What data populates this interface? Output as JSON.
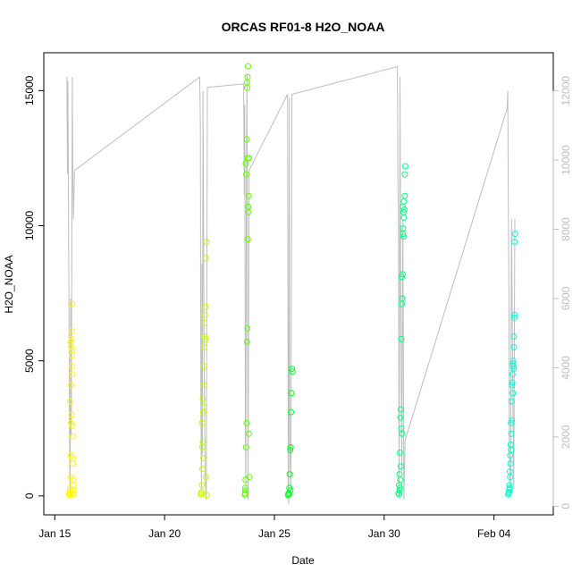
{
  "chart_data": {
    "type": "scatter",
    "title": "ORCAS RF01-8 H2O_NOAA",
    "xlabel": "Date",
    "ylabel": "H2O_NOAA",
    "x_ticks": [
      "Jan 15",
      "Jan 20",
      "Jan 25",
      "Jan 30",
      "Feb 04"
    ],
    "x_tick_values": [
      15,
      20,
      25,
      30,
      35
    ],
    "y_ticks": [
      0,
      5000,
      10000,
      15000
    ],
    "y_right_ticks": [
      0,
      2000,
      4000,
      6000,
      8000,
      10000,
      12000
    ],
    "xlim": [
      14.5,
      37.7
    ],
    "ylim": [
      -700,
      16400
    ],
    "y_right_lim": [
      -250,
      13100
    ],
    "grid": false,
    "right_axis_color": "#bebebe",
    "series": [
      {
        "color": "#FFFF00",
        "x": [
          15.65,
          15.67,
          15.69,
          15.7,
          15.71,
          15.72,
          15.73,
          15.74,
          15.75,
          15.76,
          15.77,
          15.78,
          15.79,
          15.8,
          15.81,
          15.82,
          15.83,
          15.84,
          15.85,
          15.86,
          15.87,
          15.7,
          15.72,
          15.74,
          15.78,
          15.8,
          15.82,
          15.76,
          15.68,
          15.84
        ],
        "y": [
          100,
          50,
          150,
          300,
          80,
          700,
          1500,
          2700,
          5500,
          5800,
          4800,
          6100,
          7100,
          5400,
          4500,
          2200,
          1200,
          400,
          200,
          600,
          100,
          3500,
          5700,
          4100,
          5200,
          2600,
          1400,
          3000,
          20,
          60
        ]
      },
      {
        "color": "#C0FF00",
        "x": [
          21.65,
          21.68,
          21.7,
          21.72,
          21.74,
          21.76,
          21.78,
          21.8,
          21.82,
          21.84,
          21.86,
          21.88,
          21.9,
          21.7,
          21.74,
          21.78,
          21.82,
          21.86,
          21.66,
          21.72,
          21.8,
          21.84,
          21.76,
          21.88,
          21.92
        ],
        "y": [
          50,
          150,
          400,
          1000,
          2000,
          3100,
          4100,
          5500,
          5900,
          6700,
          7000,
          8800,
          9400,
          2700,
          3600,
          4800,
          6400,
          5800,
          100,
          1800,
          3300,
          5900,
          1400,
          700,
          30
        ]
      },
      {
        "color": "#60FF00",
        "x": [
          23.65,
          23.67,
          23.69,
          23.71,
          23.73,
          23.75,
          23.77,
          23.79,
          23.81,
          23.83,
          23.85,
          23.7,
          23.72,
          23.74,
          23.76,
          23.78,
          23.8,
          23.82,
          23.68,
          23.84,
          23.86,
          23.66,
          23.75,
          23.79
        ],
        "y": [
          50,
          200,
          600,
          1800,
          2700,
          5700,
          6200,
          9500,
          10700,
          11100,
          12500,
          12300,
          11900,
          13200,
          15100,
          15500,
          15900,
          10500,
          300,
          2300,
          700,
          100,
          15300,
          12500
        ]
      },
      {
        "color": "#00FF20",
        "x": [
          25.62,
          25.65,
          25.68,
          25.7,
          25.72,
          25.74,
          25.76,
          25.78,
          25.8,
          25.82,
          25.67,
          25.73
        ],
        "y": [
          30,
          100,
          300,
          800,
          1700,
          1800,
          3100,
          3800,
          4700,
          4600,
          60,
          200
        ]
      },
      {
        "color": "#00FF80",
        "x": [
          30.65,
          30.68,
          30.7,
          30.72,
          30.74,
          30.76,
          30.78,
          30.8,
          30.82,
          30.84,
          30.86,
          30.88,
          30.9,
          30.92,
          30.94,
          30.96,
          30.7,
          30.74,
          30.78,
          30.82,
          30.86,
          30.9,
          30.94,
          30.68,
          30.72,
          30.76,
          30.8,
          30.84,
          30.88
        ],
        "y": [
          100,
          400,
          800,
          1600,
          2900,
          3200,
          5800,
          7100,
          7300,
          8200,
          9700,
          10500,
          10900,
          10600,
          11100,
          12200,
          200,
          600,
          2500,
          2300,
          9900,
          10300,
          11900,
          50,
          300,
          1100,
          8100,
          10700,
          9600
        ]
      },
      {
        "color": "#00FFD0",
        "x": [
          35.65,
          35.68,
          35.7,
          35.72,
          35.74,
          35.76,
          35.78,
          35.8,
          35.82,
          35.84,
          35.86,
          35.88,
          35.9,
          35.92,
          35.94,
          35.96,
          35.7,
          35.74,
          35.78,
          35.82,
          35.86,
          35.9,
          35.94,
          35.67,
          35.71,
          35.75,
          35.79,
          35.83,
          35.87,
          35.91
        ],
        "y": [
          50,
          150,
          400,
          900,
          1500,
          1900,
          2700,
          3500,
          4100,
          4500,
          4900,
          5000,
          5900,
          6600,
          9400,
          9700,
          250,
          700,
          1700,
          2800,
          3800,
          4700,
          6700,
          100,
          300,
          1200,
          2300,
          4200,
          4800,
          5500
        ]
      }
    ],
    "secondary_line": {
      "color": "#bebebe",
      "x": [
        15.55,
        15.58,
        15.6,
        15.62,
        15.65,
        15.68,
        15.7,
        15.72,
        15.75,
        15.78,
        15.8,
        15.82,
        15.85,
        15.9,
        21.6,
        21.63,
        21.65,
        21.68,
        21.7,
        21.72,
        21.75,
        21.8,
        21.85,
        21.9,
        21.95,
        23.6,
        23.63,
        23.65,
        23.68,
        23.7,
        23.72,
        23.75,
        23.78,
        23.8,
        23.85,
        25.6,
        25.63,
        25.65,
        25.68,
        25.7,
        25.75,
        25.8,
        30.6,
        30.63,
        30.65,
        30.68,
        30.7,
        30.72,
        30.75,
        30.8,
        30.85,
        30.9,
        30.95,
        35.6,
        35.63,
        35.65,
        35.68,
        35.7,
        35.75,
        35.8,
        35.85,
        35.9,
        35.95
      ],
      "y": [
        12400,
        9600,
        12300,
        9200,
        5000,
        1000,
        300,
        6000,
        2000,
        7800,
        12400,
        9800,
        8300,
        9700,
        12400,
        11000,
        3000,
        500,
        7000,
        1500,
        12000,
        4000,
        800,
        200,
        12100,
        12200,
        9000,
        11600,
        2000,
        400,
        8000,
        12500,
        6000,
        200,
        9700,
        11900,
        500,
        50,
        11800,
        2000,
        300,
        11900,
        12700,
        9000,
        8500,
        300,
        5000,
        12400,
        7000,
        1000,
        8300,
        200,
        1900,
        11500,
        12000,
        9000,
        6000,
        1500,
        300,
        8300,
        4000,
        500,
        8300
      ]
    }
  }
}
